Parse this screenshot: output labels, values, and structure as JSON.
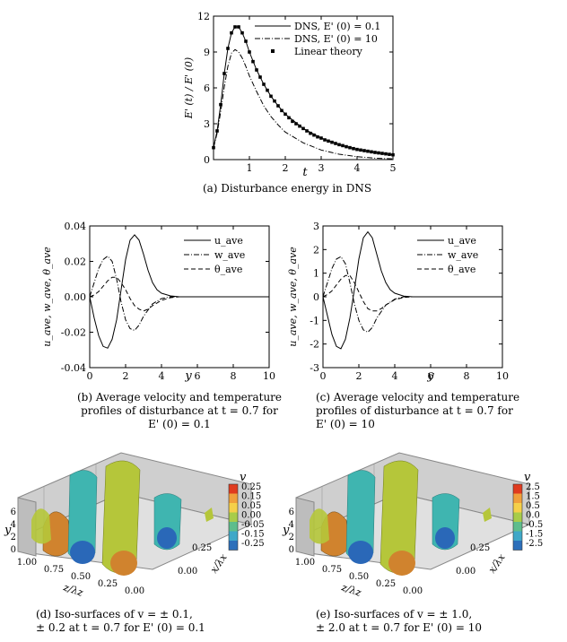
{
  "figures": [
    {
      "caption": "(a) Disturbance energy in DNS",
      "chart_data": {
        "type": "line",
        "xlabel": "t",
        "ylabel": "E' (t) / E' (0)",
        "xlim": [
          0,
          5
        ],
        "ylim": [
          0,
          12
        ],
        "xticks": [
          "1",
          "2",
          "3",
          "4",
          "5"
        ],
        "yticks": [
          "0",
          "3",
          "6",
          "9",
          "12"
        ],
        "legend_position": "top-right",
        "series": [
          {
            "name": "DNS, E' (0) = 0.1",
            "style": "solid",
            "x": [
              0,
              0.1,
              0.2,
              0.3,
              0.4,
              0.5,
              0.6,
              0.7,
              0.8,
              0.9,
              1.0,
              1.2,
              1.4,
              1.6,
              1.8,
              2.0,
              2.5,
              3.0,
              3.5,
              4.0,
              4.5,
              5.0
            ],
            "y": [
              1.0,
              2.4,
              4.6,
              7.2,
              9.3,
              10.6,
              11.1,
              11.1,
              10.6,
              9.9,
              9.0,
              7.5,
              6.3,
              5.3,
              4.5,
              3.8,
              2.6,
              1.8,
              1.25,
              0.85,
              0.6,
              0.4
            ]
          },
          {
            "name": "DNS, E' (0) = 10",
            "style": "dashdot",
            "x": [
              0,
              0.1,
              0.2,
              0.3,
              0.4,
              0.5,
              0.6,
              0.7,
              0.8,
              0.9,
              1.0,
              1.2,
              1.4,
              1.6,
              1.8,
              2.0,
              2.5,
              3.0,
              3.5,
              4.0,
              4.5,
              5.0
            ],
            "y": [
              1.0,
              2.2,
              4.0,
              6.1,
              7.8,
              8.9,
              9.2,
              9.0,
              8.5,
              7.8,
              7.0,
              5.7,
              4.5,
              3.6,
              2.9,
              2.3,
              1.4,
              0.8,
              0.45,
              0.25,
              0.12,
              0.06
            ]
          },
          {
            "name": "Linear theory",
            "style": "square-markers",
            "x": [
              0,
              0.1,
              0.2,
              0.3,
              0.4,
              0.5,
              0.6,
              0.7,
              0.8,
              0.9,
              1.0,
              1.1,
              1.2,
              1.3,
              1.4,
              1.5,
              1.6,
              1.7,
              1.8,
              1.9,
              2.0,
              2.1,
              2.2,
              2.3,
              2.4,
              2.5,
              2.6,
              2.7,
              2.8,
              2.9,
              3.0,
              3.1,
              3.2,
              3.3,
              3.4,
              3.5,
              3.6,
              3.7,
              3.8,
              3.9,
              4.0,
              4.1,
              4.2,
              4.3,
              4.4,
              4.5,
              4.6,
              4.7,
              4.8,
              4.9,
              5.0
            ],
            "y": [
              1.0,
              2.4,
              4.6,
              7.2,
              9.3,
              10.6,
              11.1,
              11.1,
              10.6,
              9.9,
              9.0,
              8.2,
              7.5,
              6.9,
              6.3,
              5.8,
              5.3,
              4.9,
              4.5,
              4.1,
              3.8,
              3.5,
              3.2,
              3.0,
              2.8,
              2.6,
              2.4,
              2.2,
              2.05,
              1.9,
              1.8,
              1.65,
              1.55,
              1.45,
              1.35,
              1.25,
              1.17,
              1.08,
              1.0,
              0.92,
              0.85,
              0.8,
              0.75,
              0.7,
              0.65,
              0.6,
              0.56,
              0.52,
              0.48,
              0.44,
              0.4
            ]
          }
        ]
      }
    },
    {
      "caption": "(b) Average velocity and temperature\nprofiles of disturbance at t = 0.7 for\nE' (0) = 0.1",
      "chart_data": {
        "type": "line",
        "xlabel": "y",
        "ylabel": "u_ave, w_ave, θ_ave",
        "xlim": [
          0,
          10
        ],
        "ylim": [
          -0.04,
          0.04
        ],
        "xticks": [
          "0",
          "2",
          "4",
          "6",
          "8",
          "10"
        ],
        "yticks": [
          "-0.04",
          "-0.02",
          "0.00",
          "0.02",
          "0.04"
        ],
        "legend_position": "top-right",
        "series": [
          {
            "name": "u_ave",
            "style": "solid",
            "x": [
              0,
              0.25,
              0.5,
              0.75,
              1.0,
              1.25,
              1.5,
              1.75,
              2.0,
              2.25,
              2.5,
              2.75,
              3.0,
              3.25,
              3.5,
              3.75,
              4.0,
              4.5,
              5.0,
              6.0,
              7.0,
              8.0,
              10.0
            ],
            "y": [
              0,
              -0.012,
              -0.022,
              -0.028,
              -0.029,
              -0.024,
              -0.013,
              0.004,
              0.021,
              0.032,
              0.035,
              0.032,
              0.024,
              0.015,
              0.008,
              0.004,
              0.002,
              0.0005,
              0,
              0,
              0,
              0,
              0
            ]
          },
          {
            "name": "w_ave",
            "style": "dashdot",
            "x": [
              0,
              0.25,
              0.5,
              0.75,
              1.0,
              1.25,
              1.5,
              1.75,
              2.0,
              2.25,
              2.5,
              2.75,
              3.0,
              3.5,
              4.0,
              4.5,
              5.0,
              6.0,
              8.0,
              10.0
            ],
            "y": [
              0,
              0.008,
              0.016,
              0.021,
              0.023,
              0.02,
              0.01,
              -0.003,
              -0.013,
              -0.018,
              -0.019,
              -0.016,
              -0.011,
              -0.004,
              -0.001,
              0,
              0,
              0,
              0,
              0
            ]
          },
          {
            "name": "θ_ave",
            "style": "dashed",
            "x": [
              0,
              0.25,
              0.5,
              0.75,
              1.0,
              1.25,
              1.5,
              1.75,
              2.0,
              2.25,
              2.5,
              2.75,
              3.0,
              3.25,
              3.5,
              4.0,
              4.5,
              5.0,
              6.0,
              8.0,
              10.0
            ],
            "y": [
              0,
              0.001,
              0.003,
              0.006,
              0.009,
              0.011,
              0.011,
              0.008,
              0.004,
              -0.001,
              -0.005,
              -0.007,
              -0.008,
              -0.007,
              -0.005,
              -0.002,
              -0.0005,
              0,
              0,
              0,
              0
            ]
          }
        ]
      }
    },
    {
      "caption": "(c) Average velocity and temperature\nprofiles of disturbance at t = 0.7 for\nE' (0) = 10",
      "chart_data": {
        "type": "line",
        "xlabel": "y",
        "ylabel": "u_ave, w_ave, θ_ave",
        "xlim": [
          0,
          10
        ],
        "ylim": [
          -3,
          3
        ],
        "xticks": [
          "0",
          "2",
          "4",
          "6",
          "8",
          "10"
        ],
        "yticks": [
          "-3",
          "-2",
          "-1",
          "0",
          "1",
          "2",
          "3"
        ],
        "legend_position": "top-right",
        "series": [
          {
            "name": "u_ave",
            "style": "solid",
            "x": [
              0,
              0.25,
              0.5,
              0.75,
              1.0,
              1.25,
              1.5,
              1.75,
              2.0,
              2.25,
              2.5,
              2.75,
              3.0,
              3.25,
              3.5,
              3.75,
              4.0,
              4.5,
              5.0,
              6.0,
              8.0,
              10.0
            ],
            "y": [
              0,
              -0.8,
              -1.6,
              -2.1,
              -2.2,
              -1.8,
              -0.9,
              0.3,
              1.6,
              2.5,
              2.75,
              2.5,
              1.8,
              1.1,
              0.6,
              0.3,
              0.15,
              0.03,
              0,
              0,
              0,
              0
            ]
          },
          {
            "name": "w_ave",
            "style": "dashdot",
            "x": [
              0,
              0.25,
              0.5,
              0.75,
              1.0,
              1.25,
              1.5,
              1.75,
              2.0,
              2.25,
              2.5,
              2.75,
              3.0,
              3.5,
              4.0,
              4.5,
              5.0,
              6.0,
              8.0,
              10.0
            ],
            "y": [
              0,
              0.6,
              1.2,
              1.6,
              1.7,
              1.4,
              0.6,
              -0.3,
              -1.0,
              -1.4,
              -1.5,
              -1.3,
              -0.9,
              -0.35,
              -0.1,
              0,
              0,
              0,
              0,
              0
            ]
          },
          {
            "name": "θ_ave",
            "style": "dashed",
            "x": [
              0,
              0.25,
              0.5,
              0.75,
              1.0,
              1.25,
              1.5,
              1.75,
              2.0,
              2.25,
              2.5,
              2.75,
              3.0,
              3.25,
              3.5,
              4.0,
              4.5,
              5.0,
              6.0,
              8.0,
              10.0
            ],
            "y": [
              0,
              0.1,
              0.25,
              0.5,
              0.75,
              0.9,
              0.9,
              0.6,
              0.2,
              -0.2,
              -0.5,
              -0.6,
              -0.6,
              -0.5,
              -0.35,
              -0.12,
              -0.03,
              0,
              0,
              0,
              0
            ]
          }
        ]
      }
    },
    {
      "caption": "(d) Iso-surfaces of v = ± 0.1,\n± 0.2 at t = 0.7 for E' (0) = 0.1",
      "axes": {
        "y_label": "y",
        "z_label": "z/λz",
        "x_label": "x/λx",
        "y_ticks": [
          "0",
          "2",
          "4",
          "6"
        ],
        "z_ticks": [
          "1.00",
          "0.75",
          "0.50",
          "0.25",
          "0.00"
        ],
        "x_ticks": [
          "0.00",
          "0.25"
        ]
      },
      "colorbar": {
        "title": "v",
        "labels": [
          "0.25",
          "0.15",
          "0.05",
          "0.00",
          "-0.05",
          "-0.15",
          "-0.25"
        ]
      }
    },
    {
      "caption": "(e) Iso-surfaces of v = ± 1.0,\n± 2.0 at t = 0.7 for E' (0) = 10",
      "axes": {
        "y_label": "y",
        "z_label": "z/λz",
        "x_label": "x/λx",
        "y_ticks": [
          "0",
          "2",
          "4",
          "6"
        ],
        "z_ticks": [
          "1.00",
          "0.75",
          "0.50",
          "0.25",
          "0.00"
        ],
        "x_ticks": [
          "0.00",
          "0.25"
        ]
      },
      "colorbar": {
        "title": "v",
        "labels": [
          "2.5",
          "1.5",
          "0.5",
          "0.0",
          "-0.5",
          "-1.5",
          "-2.5"
        ]
      }
    }
  ],
  "colors": {
    "colorbar": [
      "#e03b1f",
      "#f0a03c",
      "#f5d04a",
      "#a8cc4a",
      "#5ebd8c",
      "#3fa8c8",
      "#2c6fba"
    ],
    "surface_yellow": "#b5c63a",
    "surface_cyan": "#3fb5b0",
    "surface_blue": "#2a68b8",
    "surface_orange": "#d0832e",
    "box_grey": "#c8c8c8"
  }
}
